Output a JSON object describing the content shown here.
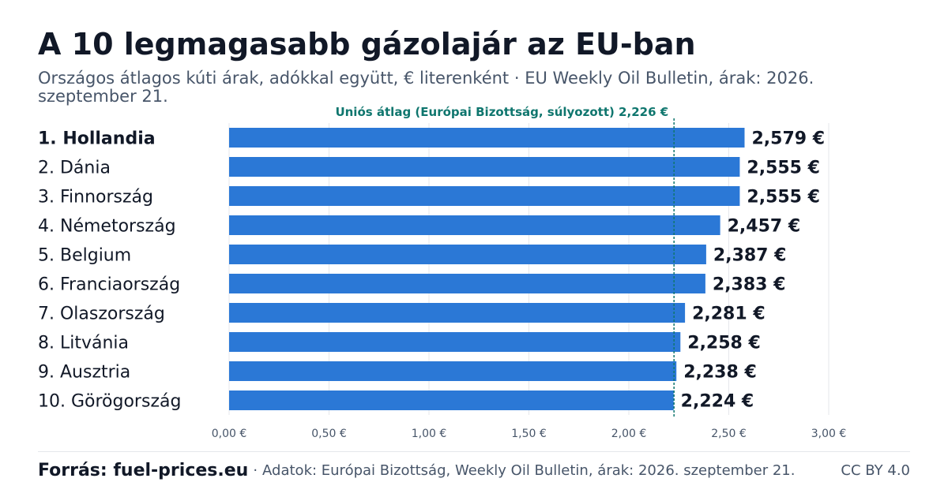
{
  "title": "A 10 legmagasabb gázolajár az EU-ban",
  "subtitle": "Országos átlagos kúti árak, adókkal együtt, € literenként · EU Weekly Oil Bulletin, árak: 2026. szeptember 21.",
  "footer": {
    "source": "Forrás: fuel-prices.eu",
    "separator": "·",
    "data_note": "Adatok: Európai Bizottság, Weekly Oil Bulletin, árak: 2026. szeptember 21.",
    "license": "CC BY 4.0"
  },
  "colors": {
    "bar": "#2b78d6",
    "reference_line": "#0f766e",
    "grid": "#e5e7eb",
    "text_dark": "#111827",
    "text_muted": "#475569"
  },
  "chart_data": {
    "type": "bar",
    "orientation": "horizontal",
    "categories": [
      "1. Hollandia",
      "2. Dánia",
      "3. Finnország",
      "4. Németország",
      "5. Belgium",
      "6. Franciaország",
      "7. Olaszország",
      "8. Litvánia",
      "9. Ausztria",
      "10. Görögország"
    ],
    "values": [
      2.579,
      2.555,
      2.555,
      2.457,
      2.387,
      2.383,
      2.281,
      2.258,
      2.238,
      2.224
    ],
    "value_labels": [
      "2,579 €",
      "2,555 €",
      "2,555 €",
      "2,457 €",
      "2,387 €",
      "2,383 €",
      "2,281 €",
      "2,258 €",
      "2,238 €",
      "2,224 €"
    ],
    "highlighted_category": "1. Hollandia",
    "xlim": [
      0,
      3
    ],
    "x_ticks": [
      0,
      0.5,
      1,
      1.5,
      2,
      2.5,
      3
    ],
    "x_tick_labels": [
      "0,00 €",
      "0,50 €",
      "1,00 €",
      "1,50 €",
      "2,00 €",
      "2,50 €",
      "3,00 €"
    ],
    "grid": true,
    "reference_line": {
      "value": 2.226,
      "label": "Uniós átlag (Európai Bizottság, súlyozott) 2,226 €"
    }
  }
}
